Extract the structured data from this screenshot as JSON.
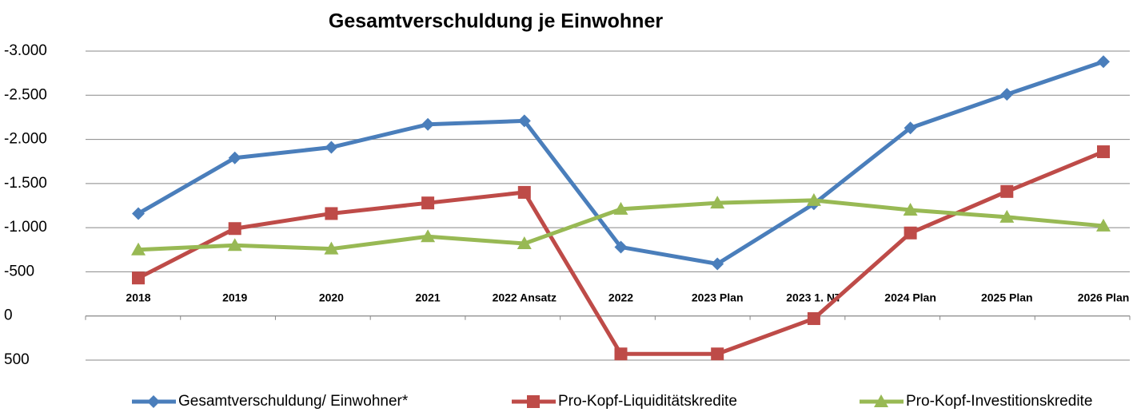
{
  "chart_data": {
    "type": "line",
    "title": "Gesamtverschuldung je Einwohner",
    "categories": [
      "2018",
      "2019",
      "2020",
      "2021",
      "2022 Ansatz",
      "2022",
      "2023 Plan",
      "2023 1. NT",
      "2024 Plan",
      "2025 Plan",
      "2026 Plan"
    ],
    "series": [
      {
        "name": "Gesamtverschuldung/ Einwohner*",
        "color": "#4a7ebb",
        "marker": "diamond",
        "values": [
          -1160,
          -1790,
          -1910,
          -2170,
          -2210,
          -780,
          -590,
          -1270,
          -2130,
          -2510,
          -2880
        ]
      },
      {
        "name": "Pro-Kopf-Liquiditätskredite",
        "color": "#be4b48",
        "marker": "square",
        "values": [
          -430,
          -990,
          -1160,
          -1280,
          -1400,
          430,
          430,
          30,
          -940,
          -1410,
          -1860
        ]
      },
      {
        "name": "Pro-Kopf-Investitionskredite",
        "color": "#98b954",
        "marker": "triangle",
        "values": [
          -750,
          -800,
          -760,
          -900,
          -820,
          -1210,
          -1280,
          -1310,
          -1200,
          -1120,
          -1020
        ]
      }
    ],
    "ylim": [
      500,
      -3000
    ],
    "yticks": [
      {
        "value": -3000,
        "label": "-3.000"
      },
      {
        "value": -2500,
        "label": "-2.500"
      },
      {
        "value": -2000,
        "label": "-2.000"
      },
      {
        "value": -1500,
        "label": "-1.500"
      },
      {
        "value": -1000,
        "label": "-1.000"
      },
      -500,
      0,
      500
    ],
    "grid": true,
    "legend": "bottom"
  }
}
